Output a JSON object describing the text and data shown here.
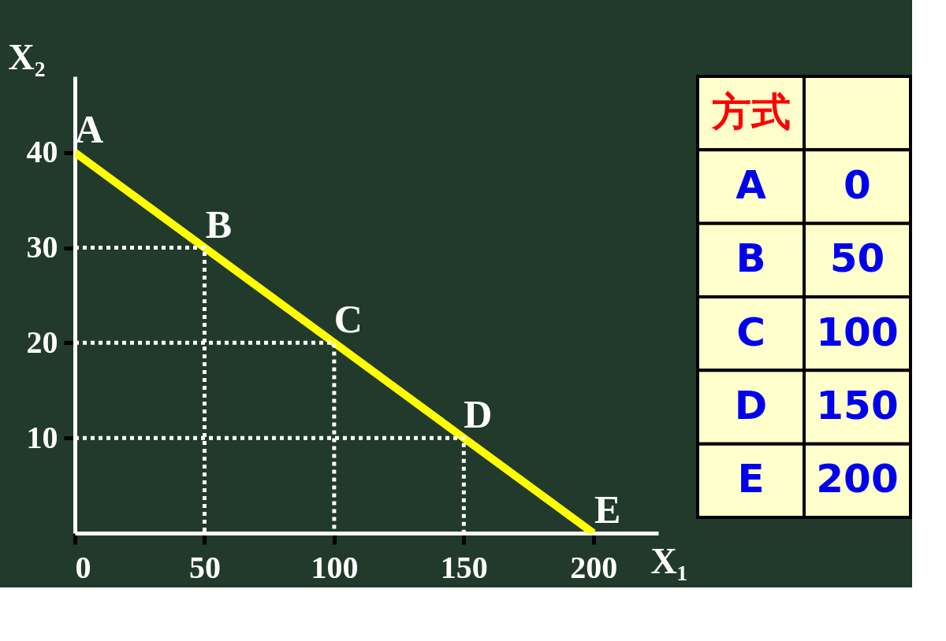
{
  "chart_data": [
    {
      "type": "line",
      "xlabel": "X₁",
      "ylabel": "X₂",
      "x": [
        0,
        50,
        100,
        150,
        200
      ],
      "series": [
        {
          "color": "#ffff00",
          "values": [
            40,
            30,
            20,
            10,
            0
          ],
          "line_style": "solid"
        },
        {
          "type": "line",
          "color": "#ffffff",
          "line_style": "dotted",
          "x": [
            0,
            50,
            50
          ],
          "values": [
            30,
            30,
            0
          ]
        },
        {
          "type": "line",
          "color": "#ffffff",
          "line_style": "dotted",
          "x": [
            0,
            100,
            100
          ],
          "values": [
            20,
            20,
            0
          ]
        },
        {
          "type": "line",
          "color": "#ffffff",
          "line_style": "dotted",
          "x": [
            0,
            150,
            150
          ],
          "values": [
            10,
            10,
            0
          ]
        }
      ],
      "xlim": [
        0,
        225
      ],
      "ylim": [
        0,
        48
      ],
      "xticks": [
        0,
        50,
        100,
        150,
        200
      ],
      "yticks": [
        10,
        20,
        30,
        40
      ],
      "annotations": [
        {
          "text": "A",
          "x": 0,
          "y": 40
        },
        {
          "text": "B",
          "x": 50,
          "y": 30
        },
        {
          "text": "C",
          "x": 100,
          "y": 20
        },
        {
          "text": "D",
          "x": 150,
          "y": 10
        },
        {
          "text": "E",
          "x": 200,
          "y": 0
        },
        "方式",
        "A",
        "0",
        "B",
        "50",
        "C",
        "100",
        "D",
        "150",
        "E",
        "200"
      ]
    }
  ]
}
